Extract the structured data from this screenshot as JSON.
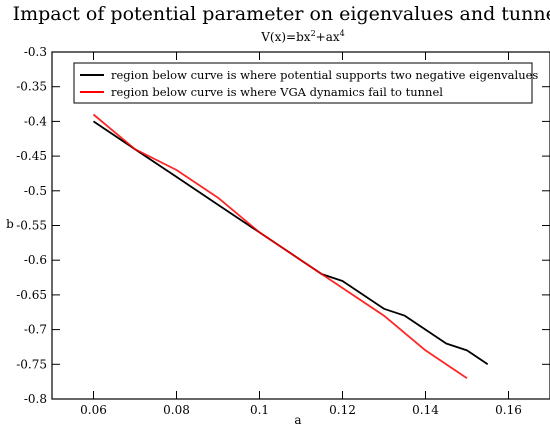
{
  "chart_data": {
    "type": "line",
    "title": "Impact of potential parameter on eigenvalues and tunneling",
    "subtitle": {
      "prefix": "V(x)=bx",
      "sup1": "2",
      "middle": "+ax",
      "sup2": "4"
    },
    "xlabel": "a",
    "ylabel": "b",
    "xlim": [
      0.05,
      0.17
    ],
    "ylim": [
      -0.8,
      -0.3
    ],
    "xticks": [
      0.06,
      0.08,
      0.1,
      0.12,
      0.14,
      0.16
    ],
    "xtick_labels": [
      "0.06",
      "0.08",
      "0.1",
      "0.12",
      "0.14",
      "0.16"
    ],
    "yticks": [
      -0.3,
      -0.35,
      -0.4,
      -0.45,
      -0.5,
      -0.55,
      -0.6,
      -0.65,
      -0.7,
      -0.75,
      -0.8
    ],
    "ytick_labels": [
      "-0.3",
      "-0.35",
      "-0.4",
      "-0.45",
      "-0.5",
      "-0.55",
      "-0.6",
      "-0.65",
      "-0.7",
      "-0.75",
      "-0.8"
    ],
    "grid": false,
    "legend_position": "top",
    "series": [
      {
        "name": "region below curve is where potential supports two negative eigenvalues",
        "color": "#000000",
        "x": [
          0.06,
          0.07,
          0.08,
          0.09,
          0.1,
          0.11,
          0.115,
          0.12,
          0.13,
          0.135,
          0.145,
          0.15,
          0.155
        ],
        "y": [
          -0.4,
          -0.44,
          -0.48,
          -0.52,
          -0.56,
          -0.6,
          -0.62,
          -0.63,
          -0.67,
          -0.68,
          -0.72,
          -0.73,
          -0.75
        ]
      },
      {
        "name": "region below curve is where VGA dynamics fail to tunnel",
        "color": "#ff0000",
        "x": [
          0.06,
          0.07,
          0.08,
          0.09,
          0.1,
          0.11,
          0.12,
          0.13,
          0.14,
          0.15
        ],
        "y": [
          -0.39,
          -0.44,
          -0.47,
          -0.51,
          -0.56,
          -0.6,
          -0.64,
          -0.68,
          -0.73,
          -0.77
        ]
      }
    ]
  }
}
